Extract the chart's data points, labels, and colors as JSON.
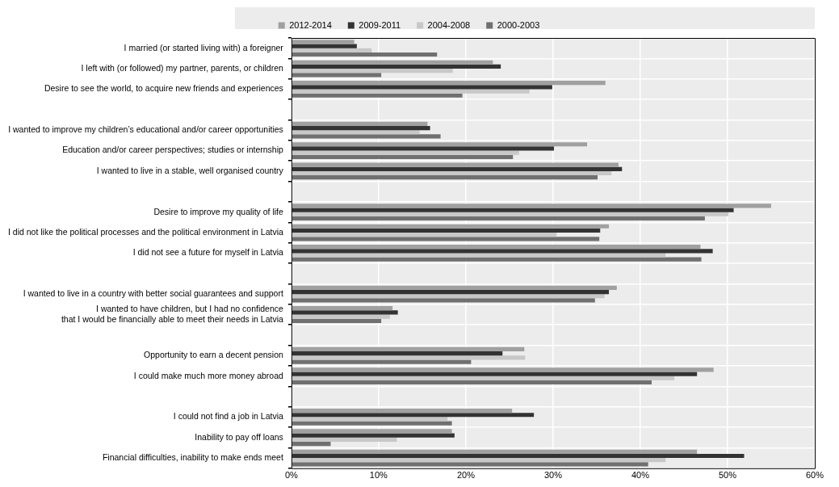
{
  "chart_data": {
    "type": "bar",
    "orientation": "horizontal",
    "legend": "top",
    "grid": true,
    "categories": [
      "I married (or started living with) a foreigner",
      "I left with (or followed) my partner, parents, or children",
      "Desire to see the world, to acquire new friends and experiences",
      null,
      "I wanted to improve my children’s educational and/or career opportunities",
      "Education and/or career perspectives; studies or internship",
      "I wanted to live in a stable, well organised country",
      null,
      "Desire to improve my quality of life",
      "I did not like the political processes and the political environment in Latvia",
      "I did not see a future for myself in Latvia",
      null,
      "I wanted to live in a country with better social guarantees and support",
      "I wanted to have children, but I had no confidence\nthat I would be financially able to meet their needs in Latvia",
      null,
      "Opportunity to earn a decent pension",
      "I could make much more money abroad",
      null,
      "I could not find a job in Latvia",
      "Inability to pay off loans",
      "Financial difficulties, inability to make ends meet"
    ],
    "series": [
      {
        "name": "2012-2014",
        "color": "#a0a0a0",
        "values": [
          7.2,
          23.1,
          36.0,
          null,
          15.6,
          33.9,
          37.5,
          null,
          55.0,
          36.4,
          46.9,
          null,
          37.3,
          11.6,
          null,
          26.7,
          48.4,
          null,
          25.3,
          18.4,
          46.5
        ]
      },
      {
        "name": "2009-2011",
        "color": "#333333",
        "values": [
          7.5,
          24.0,
          29.9,
          null,
          15.9,
          30.1,
          37.9,
          null,
          50.7,
          35.4,
          48.3,
          null,
          36.4,
          12.2,
          null,
          24.2,
          46.5,
          null,
          27.8,
          18.7,
          51.9
        ]
      },
      {
        "name": "2004-2008",
        "color": "#c8c8c8",
        "values": [
          9.2,
          18.5,
          27.3,
          null,
          14.7,
          26.1,
          36.7,
          null,
          50.1,
          30.4,
          42.9,
          null,
          35.9,
          11.3,
          null,
          26.8,
          43.9,
          null,
          17.9,
          12.1,
          42.9
        ]
      },
      {
        "name": "2000-2003",
        "color": "#707070",
        "values": [
          16.7,
          10.3,
          19.6,
          null,
          17.1,
          25.4,
          35.1,
          null,
          47.4,
          35.3,
          47.0,
          null,
          34.8,
          10.3,
          null,
          20.6,
          41.3,
          null,
          18.4,
          4.5,
          40.9
        ]
      }
    ],
    "xlim": [
      0,
      60
    ],
    "xticks": [
      {
        "value": 0,
        "label": "0%"
      },
      {
        "value": 10,
        "label": "10%"
      },
      {
        "value": 20,
        "label": "20%"
      },
      {
        "value": 30,
        "label": "30%"
      },
      {
        "value": 40,
        "label": "40%"
      },
      {
        "value": 50,
        "label": "50%"
      },
      {
        "value": 60,
        "label": "60%"
      }
    ]
  }
}
